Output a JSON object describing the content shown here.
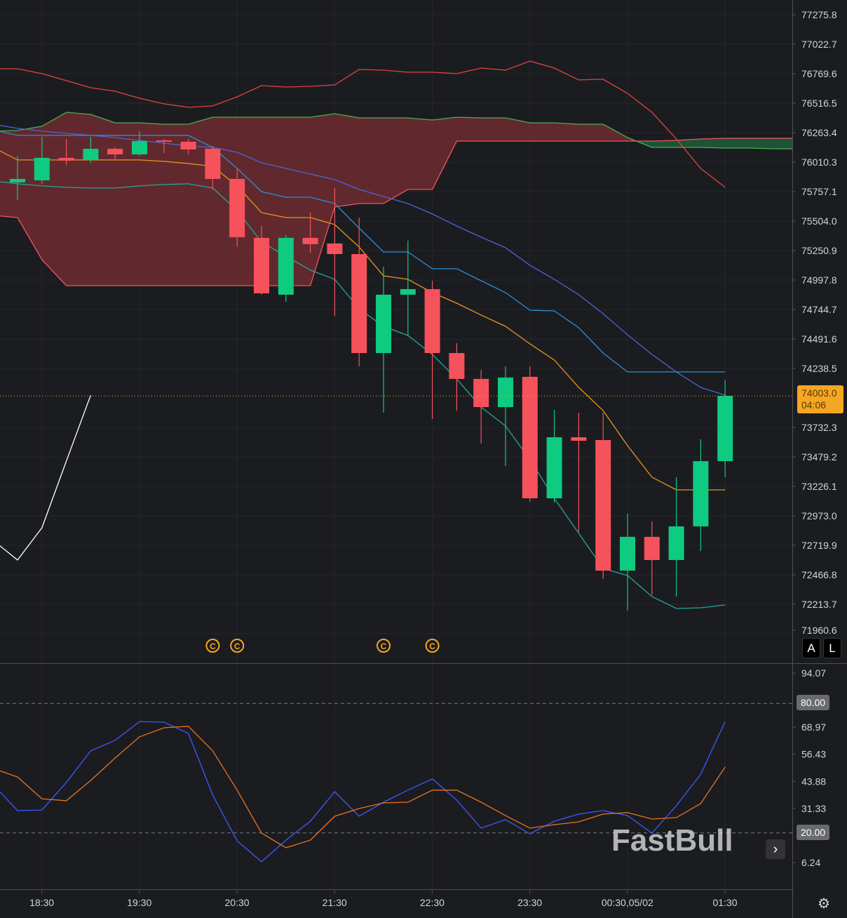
{
  "chart_data": [
    {
      "type": "candlestick",
      "interval_minutes": 15,
      "x_ticks": [
        "18:30",
        "19:30",
        "20:30",
        "21:30",
        "22:30",
        "23:30",
        "00:30,05/02",
        "01:30"
      ],
      "y_ticks": [
        "77275.8",
        "77022.7",
        "76769.6",
        "76516.5",
        "76263.4",
        "76010.3",
        "75757.1",
        "75504.0",
        "75250.9",
        "74997.8",
        "74744.7",
        "74491.6",
        "74238.5",
        "73732.3",
        "73479.2",
        "73226.1",
        "72973.0",
        "72719.9",
        "72466.8",
        "72213.7",
        "71960.6"
      ],
      "ylim": [
        71960.6,
        77275.8
      ],
      "grid": true,
      "current_price": "74003.0",
      "countdown": "04:06",
      "colors": {
        "up": "#0ecb81",
        "down": "#f6525c",
        "cloud_bear": "#7a2e33",
        "cloud_bull": "#1f5a37",
        "upper": "#e0453f",
        "span_a": "#4caf50",
        "span_b": "#f6525c",
        "slow": "#4e63d8",
        "kijun": "#2a8fd8",
        "tenkan": "#e8951e",
        "lagging": "#26a69a",
        "white": "#ffffff"
      },
      "candles": [
        {
          "o": 75836,
          "h": 76065,
          "l": 75685,
          "c": 75866
        },
        {
          "o": 75854,
          "h": 76227,
          "l": 75824,
          "c": 76047
        },
        {
          "o": 76047,
          "h": 76209,
          "l": 75986,
          "c": 76023
        },
        {
          "o": 76029,
          "h": 76227,
          "l": 76005,
          "c": 76125
        },
        {
          "o": 76125,
          "h": 76137,
          "l": 76029,
          "c": 76077
        },
        {
          "o": 76077,
          "h": 76276,
          "l": 76065,
          "c": 76191
        },
        {
          "o": 76197,
          "h": 76209,
          "l": 76089,
          "c": 76185
        },
        {
          "o": 76185,
          "h": 76209,
          "l": 76077,
          "c": 76119
        },
        {
          "o": 76125,
          "h": 76149,
          "l": 75776,
          "c": 75866
        },
        {
          "o": 75866,
          "h": 75956,
          "l": 75281,
          "c": 75366
        },
        {
          "o": 75360,
          "h": 75462,
          "l": 74872,
          "c": 74884
        },
        {
          "o": 74872,
          "h": 75384,
          "l": 74811,
          "c": 75360
        },
        {
          "o": 75360,
          "h": 75577,
          "l": 75233,
          "c": 75306
        },
        {
          "o": 75312,
          "h": 75788,
          "l": 74691,
          "c": 75221
        },
        {
          "o": 75221,
          "h": 75534,
          "l": 74257,
          "c": 74371
        },
        {
          "o": 74371,
          "h": 75113,
          "l": 73859,
          "c": 74872
        },
        {
          "o": 74872,
          "h": 75336,
          "l": 74522,
          "c": 74920
        },
        {
          "o": 74920,
          "h": 74992,
          "l": 73805,
          "c": 74371
        },
        {
          "o": 74371,
          "h": 74456,
          "l": 73877,
          "c": 74149
        },
        {
          "o": 74149,
          "h": 74227,
          "l": 73594,
          "c": 73907
        },
        {
          "o": 73907,
          "h": 74257,
          "l": 73401,
          "c": 74161
        },
        {
          "o": 74167,
          "h": 74257,
          "l": 73094,
          "c": 73124
        },
        {
          "o": 73124,
          "h": 73883,
          "l": 73088,
          "c": 73648
        },
        {
          "o": 73648,
          "h": 73859,
          "l": 72835,
          "c": 73618
        },
        {
          "o": 73624,
          "h": 73859,
          "l": 72431,
          "c": 72503
        },
        {
          "o": 72503,
          "h": 72991,
          "l": 72160,
          "c": 72793
        },
        {
          "o": 72793,
          "h": 72925,
          "l": 72293,
          "c": 72594
        },
        {
          "o": 72594,
          "h": 73305,
          "l": 72280,
          "c": 72883
        },
        {
          "o": 72883,
          "h": 73630,
          "l": 72672,
          "c": 73443
        },
        {
          "o": 73443,
          "h": 74136,
          "l": 73305,
          "c": 74003
        }
      ],
      "lines_start_offset": -1,
      "upper": [
        76812,
        76812,
        76770,
        76710,
        76649,
        76619,
        76559,
        76511,
        76481,
        76493,
        76571,
        76667,
        76655,
        76661,
        76673,
        76806,
        76800,
        76782,
        76782,
        76770,
        76818,
        76800,
        76878,
        76818,
        76716,
        76722,
        76601,
        76438,
        76209,
        75956,
        75794
      ],
      "span_a": [
        76276,
        76282,
        76318,
        76438,
        76420,
        76348,
        76348,
        76336,
        76336,
        76396,
        76396,
        76396,
        76396,
        76396,
        76426,
        76390,
        76390,
        76390,
        76372,
        76396,
        76390,
        76390,
        76348,
        76348,
        76336,
        76336,
        76221,
        76137,
        76137,
        76137,
        76131,
        76131,
        76125,
        76125
      ],
      "span_b": [
        75553,
        75534,
        75173,
        74950,
        74950,
        74950,
        74950,
        74950,
        74950,
        74950,
        74950,
        74950,
        74950,
        74950,
        75625,
        75655,
        75655,
        75776,
        75776,
        76191,
        76191,
        76191,
        76191,
        76191,
        76191,
        76191,
        76191,
        76191,
        76197,
        76209,
        76215,
        76215,
        76215,
        76215
      ],
      "slow": [
        76336,
        76300,
        76276,
        76258,
        76240,
        76221,
        76197,
        76173,
        76149,
        76137,
        76095,
        76005,
        75956,
        75908,
        75860,
        75776,
        75715,
        75655,
        75565,
        75462,
        75366,
        75275,
        75125,
        75004,
        74872,
        74709,
        74528,
        74359,
        74209,
        74076,
        74010
      ],
      "kijun": [
        76288,
        76240,
        76240,
        76240,
        76240,
        76240,
        76240,
        76240,
        76240,
        76137,
        75956,
        75757,
        75709,
        75709,
        75655,
        75444,
        75239,
        75239,
        75095,
        75095,
        74992,
        74890,
        74739,
        74733,
        74588,
        74371,
        74209,
        74209,
        74209,
        74209,
        74209
      ],
      "tenkan": [
        76137,
        76029,
        76029,
        76029,
        76029,
        76029,
        76029,
        76017,
        75998,
        75974,
        75806,
        75577,
        75534,
        75534,
        75474,
        75281,
        75034,
        75004,
        74890,
        74799,
        74697,
        74600,
        74450,
        74311,
        74076,
        73877,
        73576,
        73305,
        73196,
        73196,
        73196
      ],
      "lagging": [
        75848,
        75824,
        75806,
        75794,
        75788,
        75788,
        75806,
        75818,
        75824,
        75788,
        75595,
        75324,
        75203,
        75083,
        75004,
        74751,
        74600,
        74522,
        74359,
        74149,
        73907,
        73745,
        73456,
        73124,
        72823,
        72521,
        72461,
        72280,
        72178,
        72184,
        72208
      ],
      "white": [
        72763,
        72594,
        72871,
        73443,
        74010
      ],
      "markers": [
        {
          "index": 8,
          "label": "C"
        },
        {
          "index": 9,
          "label": "C"
        },
        {
          "index": 15,
          "label": "C"
        },
        {
          "index": 17,
          "label": "C"
        }
      ]
    },
    {
      "type": "line",
      "y_ticks": [
        "94.07",
        "68.97",
        "56.43",
        "43.88",
        "31.33",
        "6.24"
      ],
      "levels": [
        "80.00",
        "20.00"
      ],
      "ylim": [
        6.24,
        94.07
      ],
      "series": [
        {
          "color": "#3d5afe",
          "values": [
            42.4,
            30.3,
            30.6,
            43.4,
            58.0,
            62.9,
            71.6,
            71.3,
            66.1,
            37.5,
            16.3,
            6.6,
            16.6,
            25.4,
            39.1,
            27.7,
            34.2,
            39.8,
            45.0,
            35.2,
            22.2,
            26.1,
            19.6,
            25.4,
            28.7,
            30.3,
            28.0,
            19.9,
            32.6,
            47.2,
            71.6
          ]
        },
        {
          "color": "#e8731e",
          "values": [
            49.9,
            45.9,
            35.8,
            34.9,
            44.3,
            54.7,
            64.5,
            68.7,
            69.4,
            58.0,
            39.8,
            19.9,
            13.1,
            16.6,
            27.7,
            31.3,
            33.9,
            34.2,
            39.8,
            39.8,
            34.2,
            28.0,
            22.2,
            23.8,
            25.1,
            28.7,
            29.4,
            26.4,
            27.1,
            33.6,
            50.5
          ]
        }
      ]
    }
  ],
  "buttons": {
    "auto": "A",
    "log": "L",
    "scroll": "›",
    "settings": "⚙"
  },
  "watermark": "FastBull"
}
